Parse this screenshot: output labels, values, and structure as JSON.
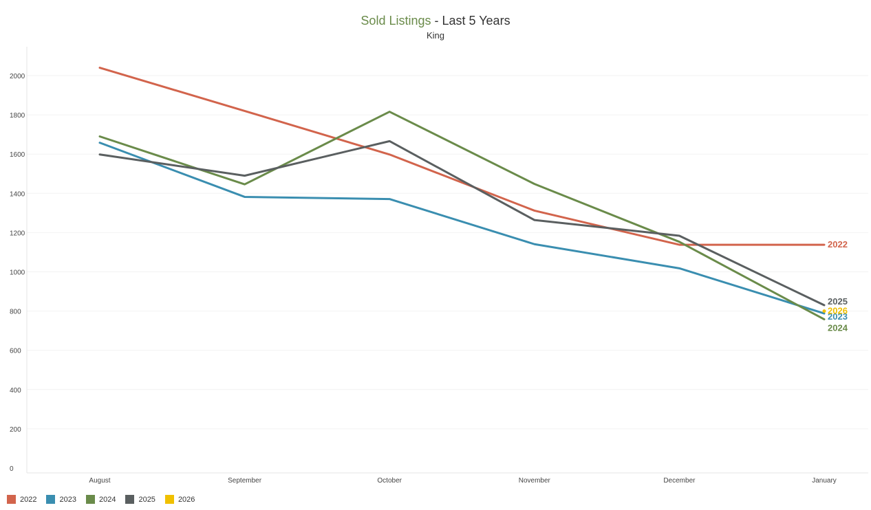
{
  "chart_data": {
    "type": "line",
    "title_main": "Sold Listings",
    "title_sep": " - ",
    "title_rest": "Last 5 Years",
    "subtitle": "King",
    "categories": [
      "August",
      "September",
      "October",
      "November",
      "December",
      "January"
    ],
    "ylim": [
      0,
      2200
    ],
    "yticks": [
      0,
      200,
      400,
      600,
      800,
      1000,
      1200,
      1400,
      1600,
      1800,
      2000
    ],
    "ytick_labels": [
      "0",
      "200",
      "400",
      "600",
      "800",
      "1000",
      "1200",
      "1400",
      "1600",
      "1800",
      "2000"
    ],
    "grid": true,
    "legend_position": "bottom-left",
    "series": [
      {
        "name": "2022",
        "color": "#d2644c",
        "values": [
          2040,
          1820,
          1598,
          1312,
          1138,
          1138
        ]
      },
      {
        "name": "2023",
        "color": "#3a8eb0",
        "values": [
          1658,
          1382,
          1371,
          1141,
          1018,
          788
        ]
      },
      {
        "name": "2024",
        "color": "#6a8b4a",
        "values": [
          1690,
          1446,
          1816,
          1448,
          1153,
          758
        ]
      },
      {
        "name": "2025",
        "color": "#5a5f60",
        "values": [
          1598,
          1490,
          1666,
          1264,
          1184,
          830
        ]
      },
      {
        "name": "2026",
        "color": "#f0c000",
        "values": [
          null,
          null,
          null,
          null,
          null,
          800
        ]
      }
    ]
  }
}
